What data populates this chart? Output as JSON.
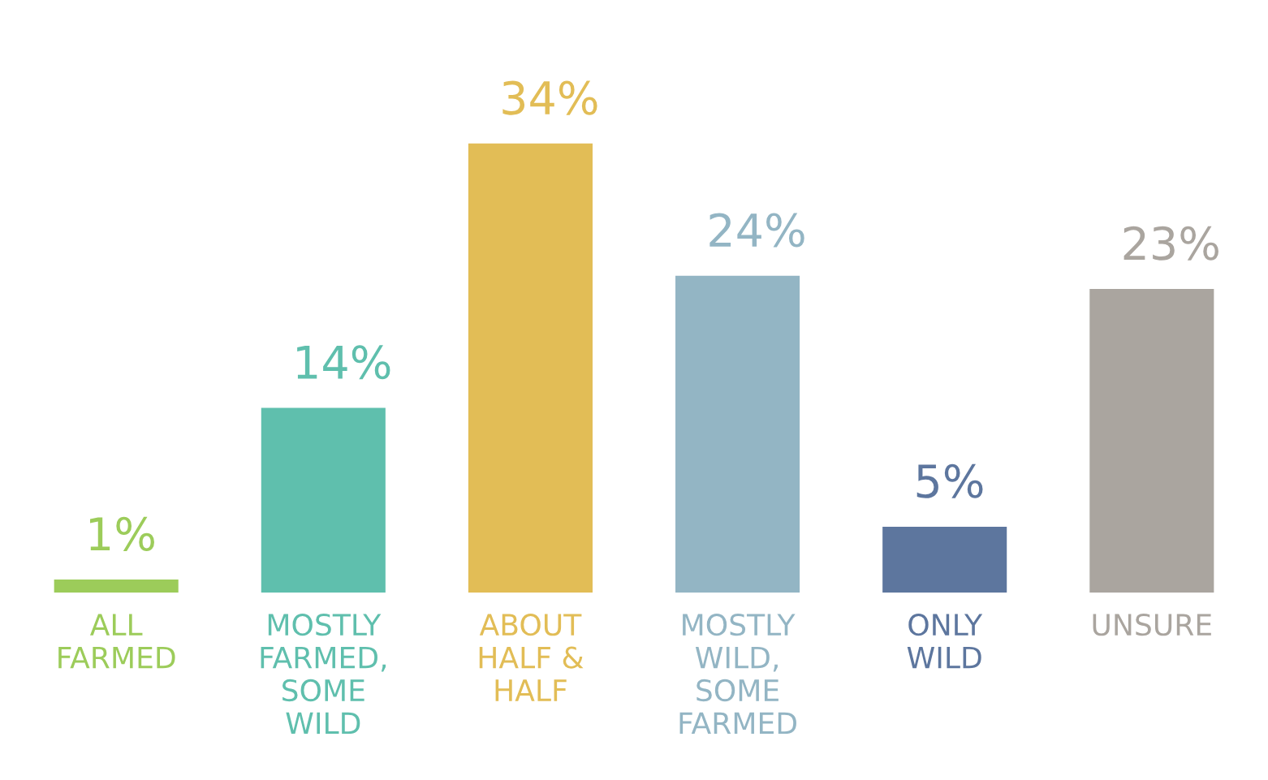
{
  "chart_data": {
    "type": "bar",
    "categories": [
      "ALL\nFARMED",
      "MOSTLY\nFARMED,\nSOME\nWILD",
      "ABOUT\nHALF &\nHALF",
      "MOSTLY\nWILD,\nSOME\nFARMED",
      "ONLY\nWILD",
      "UNSURE"
    ],
    "values": [
      1,
      14,
      34,
      24,
      5,
      23
    ],
    "value_labels": [
      "1%",
      "14%",
      "34%",
      "24%",
      "5%",
      "23%"
    ],
    "colors": [
      "#9ccc5a",
      "#5fbfad",
      "#e2bd56",
      "#93b5c4",
      "#5d769e",
      "#aaa59f"
    ],
    "grid": false,
    "tick_labels": "x"
  }
}
